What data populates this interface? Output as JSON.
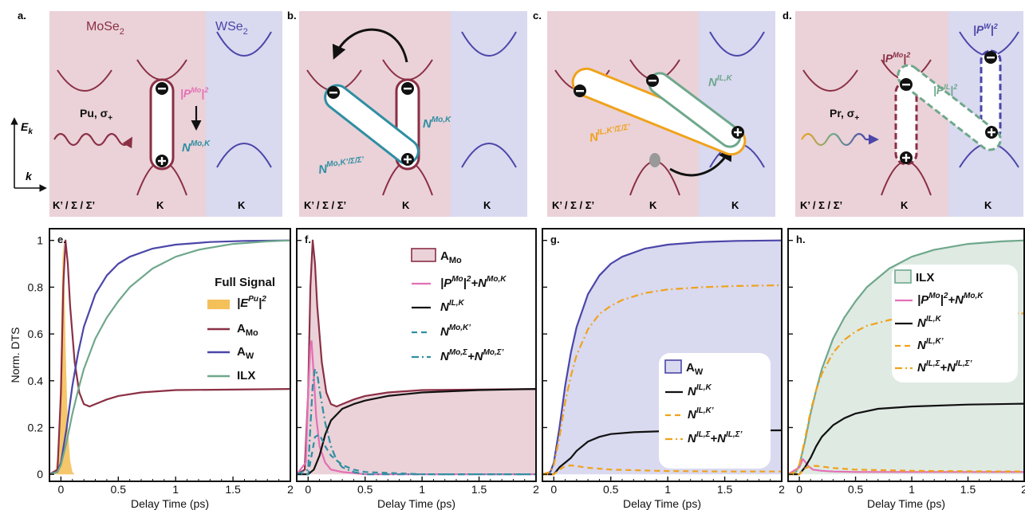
{
  "colors": {
    "mo": "#8b2f45",
    "w": "#4b46a8",
    "ilx": "#6fa88c",
    "pink": "#e36fb5",
    "teal": "#2f8ea3",
    "orange": "#f0a21b",
    "pulse": "#f4c05a",
    "bg_mo": "#ead2d8",
    "bg_w": "#d9d9f0"
  },
  "top": {
    "panel_letters": [
      "a.",
      "b.",
      "c.",
      "d."
    ],
    "a": {
      "material_mo": "MoSe",
      "material_mo_sub": "2",
      "material_w": "WSe",
      "material_w_sub": "2",
      "pump": "Pu, σ",
      "pump_sub": "+",
      "p_mo_pre": "|P",
      "p_mo_sup": "Mo",
      "p_mo_post": "|",
      "p_mo_sq": "2",
      "n_mo_k": "N",
      "n_mo_k_sup": "Mo,K",
      "axis_e": "E",
      "axis_e_sub": "k",
      "axis_k": "k",
      "x_labels": [
        "K’ / Σ / Σ’",
        "K",
        "K"
      ]
    },
    "b": {
      "n_mo_k": "N",
      "n_mo_k_sup": "Mo,K",
      "n_mo_kp": "N",
      "n_mo_kp_sup": "Mo,K’/Σ/Σ’",
      "x_labels": [
        "K’ / Σ / Σ’",
        "K",
        "K"
      ]
    },
    "c": {
      "n_il_k": "N",
      "n_il_k_sup": "IL,K",
      "n_il_kp": "N",
      "n_il_kp_sup": "IL,K’/Σ/Σ’",
      "x_labels": [
        "K’ / Σ / Σ’",
        "K",
        "K"
      ]
    },
    "d": {
      "probe": "Pr, σ",
      "probe_sub": "+",
      "p_mo_pre": "|P",
      "p_mo_sup": "Mo",
      "p_mo_post": "|",
      "p_mo_sq": "2",
      "p_il_pre": "|P",
      "p_il_sup": "IL",
      "p_il_post": "|",
      "p_il_sq": "2",
      "p_w_pre": "|P",
      "p_w_sup": "W",
      "p_w_post": "|",
      "p_w_sq": "2",
      "x_labels": [
        "K’ / Σ / Σ’",
        "K",
        "K"
      ]
    }
  },
  "chart_data": [
    {
      "panel": "e.",
      "type": "line",
      "xlabel": "Delay Time (ps)",
      "ylabel": "Norm. DTS",
      "xlim": [
        -0.1,
        2
      ],
      "ylim": [
        -0.03,
        1.05
      ],
      "xticks": [
        0,
        0.5,
        1,
        1.5,
        2
      ],
      "xtick_labels": [
        "0",
        "0.5",
        "1",
        "1.5",
        "2"
      ],
      "yticks": [
        0,
        0.2,
        0.4,
        0.6,
        0.8,
        1
      ],
      "ytick_labels": [
        "0",
        "0.2",
        "0.4",
        "0.6",
        "0.8",
        "1"
      ],
      "legend_title": "Full Signal",
      "series": [
        {
          "name": "|E",
          "name_sup": "Pu",
          "name_tail": "|",
          "name_sq": "2",
          "kind": "area",
          "x": [
            -0.05,
            -0.02,
            0.0,
            0.01,
            0.02,
            0.03,
            0.04,
            0.06,
            0.08,
            0.1,
            0.12
          ],
          "y": [
            0.0,
            0.12,
            0.55,
            0.85,
            1.0,
            0.85,
            0.55,
            0.2,
            0.06,
            0.01,
            0.0
          ]
        },
        {
          "name": "A",
          "name_sub": "Mo",
          "kind": "line",
          "x": [
            -0.1,
            -0.03,
            0.0,
            0.02,
            0.04,
            0.06,
            0.08,
            0.12,
            0.16,
            0.2,
            0.25,
            0.3,
            0.4,
            0.5,
            0.7,
            1.0,
            1.5,
            2.0
          ],
          "y": [
            0.0,
            0.02,
            0.35,
            0.8,
            1.0,
            0.9,
            0.72,
            0.48,
            0.35,
            0.3,
            0.29,
            0.3,
            0.32,
            0.335,
            0.35,
            0.36,
            0.362,
            0.365
          ]
        },
        {
          "name": "A",
          "name_sub": "W",
          "kind": "line",
          "x": [
            -0.1,
            -0.03,
            0.0,
            0.05,
            0.1,
            0.15,
            0.2,
            0.3,
            0.4,
            0.5,
            0.6,
            0.8,
            1.0,
            1.3,
            1.6,
            2.0
          ],
          "y": [
            0.0,
            0.01,
            0.05,
            0.2,
            0.38,
            0.52,
            0.63,
            0.77,
            0.85,
            0.9,
            0.93,
            0.965,
            0.982,
            0.993,
            0.998,
            1.0
          ]
        },
        {
          "name": "ILX",
          "kind": "line",
          "x": [
            -0.1,
            -0.03,
            0.0,
            0.05,
            0.1,
            0.15,
            0.2,
            0.3,
            0.4,
            0.5,
            0.6,
            0.8,
            1.0,
            1.2,
            1.5,
            1.8,
            2.0
          ],
          "y": [
            0.0,
            0.01,
            0.04,
            0.14,
            0.26,
            0.36,
            0.45,
            0.58,
            0.67,
            0.74,
            0.8,
            0.88,
            0.93,
            0.96,
            0.985,
            0.996,
            1.0
          ]
        }
      ]
    },
    {
      "panel": "f.",
      "type": "line",
      "xlabel": "Delay Time (ps)",
      "xlim": [
        -0.1,
        2
      ],
      "ylim": [
        -0.03,
        1.05
      ],
      "xticks": [
        0,
        0.5,
        1,
        1.5,
        2
      ],
      "xtick_labels": [
        "0",
        "0.5",
        "1",
        "1.5",
        "2"
      ],
      "series": [
        {
          "name": "A",
          "name_sub": "Mo",
          "kind": "filled",
          "x": [
            -0.1,
            -0.03,
            0.0,
            0.02,
            0.04,
            0.06,
            0.08,
            0.12,
            0.16,
            0.2,
            0.25,
            0.3,
            0.4,
            0.5,
            0.7,
            1.0,
            1.5,
            2.0
          ],
          "y": [
            0.0,
            0.02,
            0.35,
            0.8,
            1.0,
            0.9,
            0.72,
            0.48,
            0.35,
            0.3,
            0.29,
            0.3,
            0.32,
            0.335,
            0.35,
            0.36,
            0.362,
            0.365
          ]
        },
        {
          "name": "|P",
          "name_sup": "Mo",
          "name_tail": "|",
          "name_sq": "2",
          "name_rest": "+N",
          "name_rest_sup": "Mo,K",
          "kind": "line",
          "x": [
            -0.1,
            -0.02,
            0.0,
            0.02,
            0.03,
            0.05,
            0.07,
            0.1,
            0.15,
            0.2,
            0.3,
            0.5,
            1.0,
            2.0
          ],
          "y": [
            0.0,
            0.05,
            0.35,
            0.55,
            0.57,
            0.42,
            0.25,
            0.12,
            0.05,
            0.02,
            0.01,
            0.0,
            0.0,
            0.0
          ]
        },
        {
          "name": "N",
          "name_sup": "IL,K",
          "kind": "line",
          "x": [
            -0.1,
            0.0,
            0.05,
            0.1,
            0.15,
            0.2,
            0.3,
            0.4,
            0.5,
            0.7,
            1.0,
            1.5,
            2.0
          ],
          "y": [
            0.0,
            0.0,
            0.02,
            0.08,
            0.17,
            0.23,
            0.28,
            0.3,
            0.315,
            0.335,
            0.35,
            0.36,
            0.365
          ]
        },
        {
          "name": "N",
          "name_sup": "Mo,K’",
          "kind": "dashed",
          "x": [
            -0.1,
            0.0,
            0.03,
            0.06,
            0.1,
            0.15,
            0.2,
            0.3,
            0.4,
            0.5,
            1.0,
            2.0
          ],
          "y": [
            0.0,
            0.0,
            0.08,
            0.16,
            0.17,
            0.12,
            0.08,
            0.04,
            0.02,
            0.01,
            0.0,
            0.0
          ]
        },
        {
          "name": "N",
          "name_sup": "Mo,Σ",
          "name_rest": "+N",
          "name_rest_sup": "Mo,Σ’",
          "kind": "dashdot",
          "x": [
            -0.1,
            0.0,
            0.02,
            0.04,
            0.06,
            0.08,
            0.1,
            0.15,
            0.2,
            0.25,
            0.3,
            0.4,
            0.5,
            1.0,
            2.0
          ],
          "y": [
            0.0,
            0.02,
            0.2,
            0.38,
            0.45,
            0.43,
            0.36,
            0.22,
            0.12,
            0.06,
            0.03,
            0.01,
            0.0,
            0.0,
            0.0
          ]
        }
      ]
    },
    {
      "panel": "g.",
      "type": "line",
      "xlabel": "Delay Time (ps)",
      "xlim": [
        -0.1,
        2
      ],
      "ylim": [
        -0.03,
        1.05
      ],
      "xticks": [
        0,
        0.5,
        1,
        1.5,
        2
      ],
      "xtick_labels": [
        "0",
        "0.5",
        "1",
        "1.5",
        "2"
      ],
      "series": [
        {
          "name": "A",
          "name_sub": "W",
          "kind": "filled",
          "x": [
            -0.1,
            -0.03,
            0.0,
            0.05,
            0.1,
            0.15,
            0.2,
            0.3,
            0.4,
            0.5,
            0.6,
            0.8,
            1.0,
            1.3,
            1.6,
            2.0
          ],
          "y": [
            0.0,
            0.01,
            0.05,
            0.2,
            0.38,
            0.52,
            0.63,
            0.77,
            0.85,
            0.9,
            0.93,
            0.965,
            0.982,
            0.993,
            0.998,
            1.0
          ]
        },
        {
          "name": "N",
          "name_sup": "IL,K",
          "kind": "line",
          "x": [
            -0.1,
            0.0,
            0.05,
            0.1,
            0.15,
            0.2,
            0.3,
            0.4,
            0.5,
            0.7,
            1.0,
            1.5,
            2.0
          ],
          "y": [
            0.0,
            0.0,
            0.03,
            0.05,
            0.07,
            0.1,
            0.14,
            0.16,
            0.172,
            0.18,
            0.185,
            0.187,
            0.188
          ]
        },
        {
          "name": "N",
          "name_sup": "IL,K’",
          "kind": "dashed",
          "x": [
            -0.1,
            0.0,
            0.05,
            0.1,
            0.15,
            0.2,
            0.3,
            0.5,
            1.0,
            1.5,
            2.0
          ],
          "y": [
            0.0,
            0.0,
            0.02,
            0.035,
            0.038,
            0.035,
            0.028,
            0.02,
            0.014,
            0.012,
            0.012
          ]
        },
        {
          "name": "N",
          "name_sup": "IL,Σ",
          "name_rest": "+N",
          "name_rest_sup": "IL,Σ’",
          "kind": "dashdot",
          "x": [
            -0.1,
            -0.03,
            0.0,
            0.05,
            0.1,
            0.15,
            0.2,
            0.3,
            0.4,
            0.5,
            0.6,
            0.8,
            1.0,
            1.3,
            1.6,
            2.0
          ],
          "y": [
            0.0,
            0.01,
            0.04,
            0.16,
            0.31,
            0.42,
            0.51,
            0.62,
            0.685,
            0.72,
            0.745,
            0.775,
            0.79,
            0.8,
            0.805,
            0.808
          ]
        }
      ]
    },
    {
      "panel": "h.",
      "type": "line",
      "xlabel": "Delay Time (ps)",
      "xlim": [
        -0.1,
        2
      ],
      "ylim": [
        -0.03,
        1.05
      ],
      "xticks": [
        0,
        0.5,
        1,
        1.5,
        2
      ],
      "xtick_labels": [
        "0",
        "0.5",
        "1",
        "1.5",
        "2"
      ],
      "series": [
        {
          "name": "ILX",
          "kind": "filled",
          "x": [
            -0.1,
            -0.03,
            0.0,
            0.05,
            0.1,
            0.15,
            0.2,
            0.3,
            0.4,
            0.5,
            0.6,
            0.8,
            1.0,
            1.2,
            1.5,
            1.8,
            2.0
          ],
          "y": [
            0.0,
            0.01,
            0.04,
            0.14,
            0.26,
            0.36,
            0.45,
            0.58,
            0.67,
            0.74,
            0.8,
            0.88,
            0.93,
            0.96,
            0.985,
            0.996,
            1.0
          ]
        },
        {
          "name": "|P",
          "name_sup": "Mo",
          "name_tail": "|",
          "name_sq": "2",
          "name_rest": "+N",
          "name_rest_sup": "Mo,K",
          "kind": "line",
          "x": [
            -0.1,
            0.0,
            0.03,
            0.05,
            0.08,
            0.12,
            0.2,
            0.3,
            0.5,
            1.0,
            2.0
          ],
          "y": [
            0.0,
            0.03,
            0.065,
            0.055,
            0.035,
            0.02,
            0.015,
            0.012,
            0.01,
            0.01,
            0.01
          ]
        },
        {
          "name": "N",
          "name_sup": "IL,K",
          "kind": "line",
          "x": [
            -0.1,
            0.0,
            0.05,
            0.1,
            0.15,
            0.2,
            0.3,
            0.4,
            0.5,
            0.7,
            1.0,
            1.5,
            2.0
          ],
          "y": [
            0.0,
            0.0,
            0.03,
            0.07,
            0.12,
            0.16,
            0.21,
            0.24,
            0.26,
            0.28,
            0.29,
            0.298,
            0.302
          ]
        },
        {
          "name": "N",
          "name_sup": "IL,K’",
          "kind": "dashed",
          "x": [
            -0.1,
            0.0,
            0.05,
            0.1,
            0.15,
            0.2,
            0.3,
            0.5,
            1.0,
            1.5,
            2.0
          ],
          "y": [
            0.0,
            0.0,
            0.025,
            0.035,
            0.036,
            0.033,
            0.027,
            0.02,
            0.015,
            0.013,
            0.012
          ]
        },
        {
          "name": "N",
          "name_sup": "IL,Σ",
          "name_rest": "+N",
          "name_rest_sup": "IL,Σ’",
          "kind": "dashdot",
          "x": [
            -0.1,
            -0.03,
            0.0,
            0.05,
            0.1,
            0.15,
            0.2,
            0.3,
            0.4,
            0.5,
            0.6,
            0.8,
            1.0,
            1.3,
            1.6,
            2.0
          ],
          "y": [
            0.0,
            0.01,
            0.04,
            0.15,
            0.27,
            0.36,
            0.43,
            0.52,
            0.575,
            0.61,
            0.635,
            0.66,
            0.672,
            0.68,
            0.685,
            0.688
          ]
        }
      ]
    }
  ]
}
